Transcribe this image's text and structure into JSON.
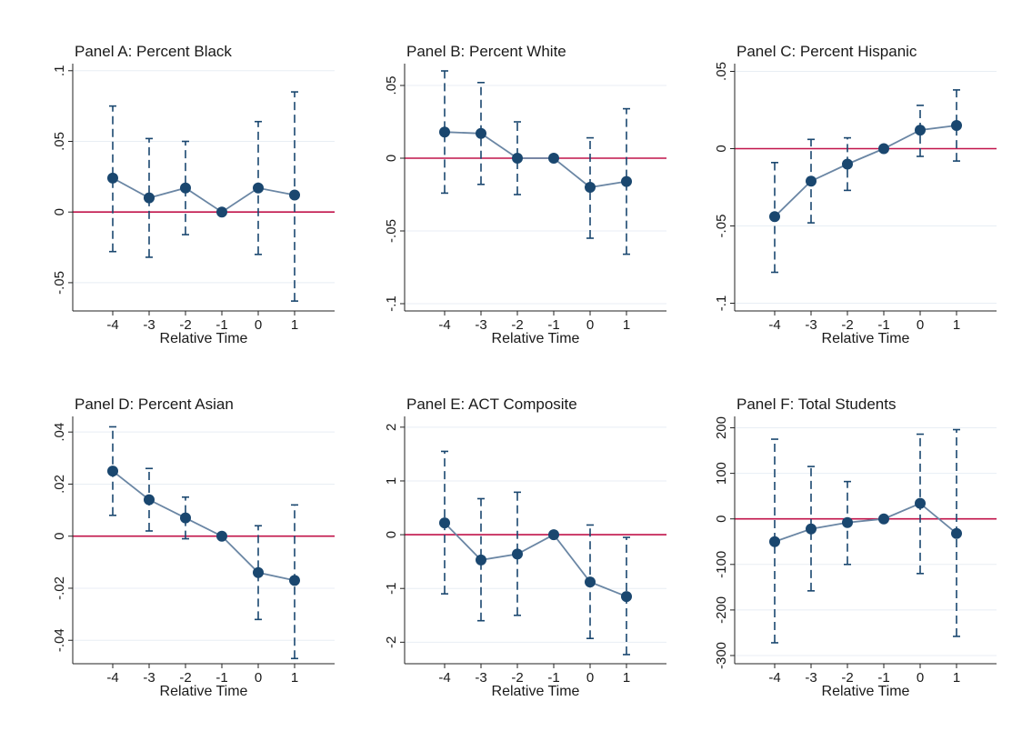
{
  "colors": {
    "marker": "#1a476f",
    "line": "#6a86a4",
    "ci": "#1a476f",
    "zero_line": "#c1134a",
    "grid": "#e8eef4",
    "axis": "#222222"
  },
  "chart_data": [
    {
      "type": "scatter",
      "title": "Panel A: Percent Black",
      "xlabel": "Relative Time",
      "ylabel": "",
      "x": [
        -4,
        -3,
        -2,
        -1,
        0,
        1
      ],
      "x_tick_labels": [
        "-4",
        "-3",
        "-2",
        "-1",
        "0",
        "1"
      ],
      "y": [
        0.024,
        0.01,
        0.017,
        0.0,
        0.017,
        0.012
      ],
      "ci_lower": [
        -0.028,
        -0.032,
        -0.016,
        0.0,
        -0.03,
        -0.063
      ],
      "ci_upper": [
        0.075,
        0.052,
        0.05,
        0.0,
        0.064,
        0.085
      ],
      "y_ticks": [
        -0.05,
        0,
        0.05,
        0.1
      ],
      "y_tick_labels": [
        "-.05",
        "0",
        ".05",
        ".1"
      ],
      "ylim": [
        -0.07,
        0.105
      ],
      "reference_line": 0,
      "grid": true
    },
    {
      "type": "scatter",
      "title": "Panel B: Percent White",
      "xlabel": "Relative Time",
      "ylabel": "",
      "x": [
        -4,
        -3,
        -2,
        -1,
        0,
        1
      ],
      "x_tick_labels": [
        "-4",
        "-3",
        "-2",
        "-1",
        "0",
        "1"
      ],
      "y": [
        0.018,
        0.017,
        0.0,
        0.0,
        -0.02,
        -0.016
      ],
      "ci_lower": [
        -0.024,
        -0.018,
        -0.025,
        0.0,
        -0.055,
        -0.066
      ],
      "ci_upper": [
        0.06,
        0.052,
        0.025,
        0.0,
        0.014,
        0.034
      ],
      "y_ticks": [
        -0.1,
        -0.05,
        0,
        0.05
      ],
      "y_tick_labels": [
        "-.1",
        "-.05",
        "0",
        ".05"
      ],
      "ylim": [
        -0.105,
        0.065
      ],
      "reference_line": 0,
      "grid": true
    },
    {
      "type": "scatter",
      "title": "Panel C: Percent Hispanic",
      "xlabel": "Relative Time",
      "ylabel": "",
      "x": [
        -4,
        -3,
        -2,
        -1,
        0,
        1
      ],
      "x_tick_labels": [
        "-4",
        "-3",
        "-2",
        "-1",
        "0",
        "1"
      ],
      "y": [
        -0.044,
        -0.021,
        -0.01,
        0.0,
        0.012,
        0.015
      ],
      "ci_lower": [
        -0.08,
        -0.048,
        -0.027,
        0.0,
        -0.005,
        -0.008
      ],
      "ci_upper": [
        -0.009,
        0.006,
        0.007,
        0.0,
        0.028,
        0.038
      ],
      "y_ticks": [
        -0.1,
        -0.05,
        0,
        0.05
      ],
      "y_tick_labels": [
        "-.1",
        "-.05",
        "0",
        ".05"
      ],
      "ylim": [
        -0.105,
        0.055
      ],
      "reference_line": 0,
      "grid": true
    },
    {
      "type": "scatter",
      "title": "Panel D: Percent Asian",
      "xlabel": "Relative Time",
      "ylabel": "",
      "x": [
        -4,
        -3,
        -2,
        -1,
        0,
        1
      ],
      "x_tick_labels": [
        "-4",
        "-3",
        "-2",
        "-1",
        "0",
        "1"
      ],
      "y": [
        0.025,
        0.014,
        0.007,
        0.0,
        -0.014,
        -0.017
      ],
      "ci_lower": [
        0.008,
        0.002,
        -0.001,
        0.0,
        -0.032,
        -0.047
      ],
      "ci_upper": [
        0.042,
        0.026,
        0.015,
        0.0,
        0.004,
        0.012
      ],
      "y_ticks": [
        -0.04,
        -0.02,
        0,
        0.02,
        0.04
      ],
      "y_tick_labels": [
        "-.04",
        "-.02",
        "0",
        ".02",
        ".04"
      ],
      "ylim": [
        -0.049,
        0.046
      ],
      "reference_line": 0,
      "grid": true
    },
    {
      "type": "scatter",
      "title": "Panel E: ACT Composite",
      "xlabel": "Relative Time",
      "ylabel": "",
      "x": [
        -4,
        -3,
        -2,
        -1,
        0,
        1
      ],
      "x_tick_labels": [
        "-4",
        "-3",
        "-2",
        "-1",
        "0",
        "1"
      ],
      "y": [
        0.22,
        -0.47,
        -0.36,
        0.0,
        -0.88,
        -1.15
      ],
      "ci_lower": [
        -1.1,
        -1.6,
        -1.5,
        0.0,
        -1.93,
        -2.23
      ],
      "ci_upper": [
        1.55,
        0.67,
        0.79,
        0.0,
        0.18,
        -0.05
      ],
      "y_ticks": [
        -2,
        -1,
        0,
        1,
        2
      ],
      "y_tick_labels": [
        "-2",
        "-1",
        "0",
        "1",
        "2"
      ],
      "ylim": [
        -2.4,
        2.2
      ],
      "reference_line": 0,
      "grid": true
    },
    {
      "type": "scatter",
      "title": "Panel F: Total Students",
      "xlabel": "Relative Time",
      "ylabel": "",
      "x": [
        -4,
        -3,
        -2,
        -1,
        0,
        1
      ],
      "x_tick_labels": [
        "-4",
        "-3",
        "-2",
        "-1",
        "0",
        "1"
      ],
      "y": [
        -50,
        -22,
        -8,
        0,
        34,
        -32
      ],
      "ci_lower": [
        -272,
        -158,
        -100,
        0,
        -120,
        -258
      ],
      "ci_upper": [
        175,
        115,
        82,
        0,
        186,
        196
      ],
      "y_ticks": [
        -300,
        -200,
        -100,
        0,
        100,
        200
      ],
      "y_tick_labels": [
        "-300",
        "-200",
        "-100",
        "0",
        "100",
        "200"
      ],
      "ylim": [
        -318,
        225
      ],
      "reference_line": 0,
      "grid": true
    }
  ]
}
